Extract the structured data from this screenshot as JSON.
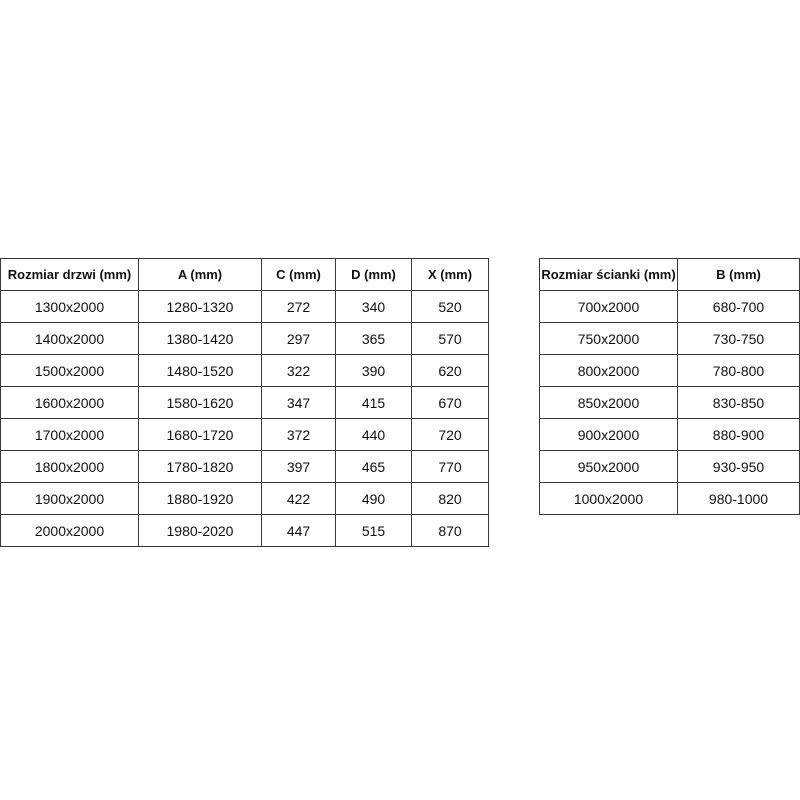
{
  "doors_table": {
    "headers": [
      "Rozmiar drzwi (mm)",
      "A (mm)",
      "C (mm)",
      "D (mm)",
      "X (mm)"
    ],
    "rows": [
      [
        "1300x2000",
        "1280-1320",
        "272",
        "340",
        "520"
      ],
      [
        "1400x2000",
        "1380-1420",
        "297",
        "365",
        "570"
      ],
      [
        "1500x2000",
        "1480-1520",
        "322",
        "390",
        "620"
      ],
      [
        "1600x2000",
        "1580-1620",
        "347",
        "415",
        "670"
      ],
      [
        "1700x2000",
        "1680-1720",
        "372",
        "440",
        "720"
      ],
      [
        "1800x2000",
        "1780-1820",
        "397",
        "465",
        "770"
      ],
      [
        "1900x2000",
        "1880-1920",
        "422",
        "490",
        "820"
      ],
      [
        "2000x2000",
        "1980-2020",
        "447",
        "515",
        "870"
      ]
    ]
  },
  "wall_table": {
    "headers": [
      "Rozmiar ścianki (mm)",
      "B (mm)"
    ],
    "rows": [
      [
        "700x2000",
        "680-700"
      ],
      [
        "750x2000",
        "730-750"
      ],
      [
        "800x2000",
        "780-800"
      ],
      [
        "850x2000",
        "830-850"
      ],
      [
        "900x2000",
        "880-900"
      ],
      [
        "950x2000",
        "930-950"
      ],
      [
        "1000x2000",
        "980-1000"
      ]
    ]
  }
}
